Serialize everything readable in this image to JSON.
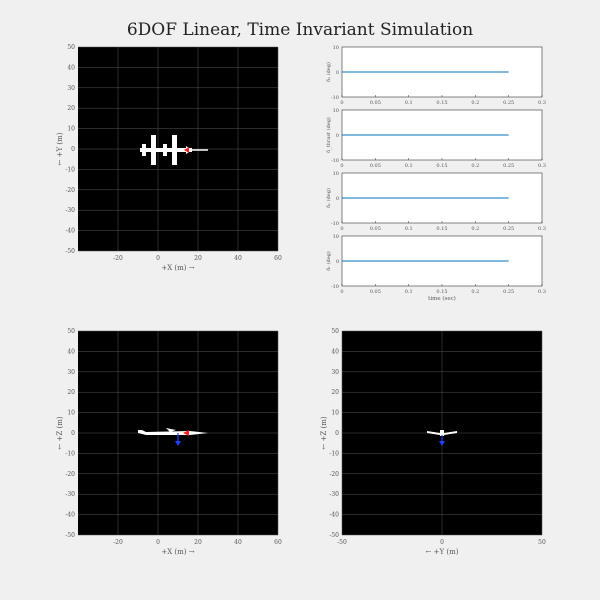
{
  "window": {
    "title": "6DOF Linear, Time Invariant Simulation"
  },
  "colors": {
    "background": "#f0f0f0",
    "plot_bg": "#000000",
    "grid": "#555555",
    "line": "#0072bd",
    "aircraft": "#ffffff",
    "force_red": "#ff2020",
    "force_blue": "#2040ff"
  },
  "top_view": {
    "xlabel": "+X (m) →",
    "ylabel": "← +Y (m)",
    "xticks": [
      "-20",
      "0",
      "20",
      "40",
      "60"
    ],
    "yticks": [
      "50",
      "40",
      "30",
      "20",
      "10",
      "0",
      "-10",
      "-20",
      "-30",
      "-40",
      "-50"
    ]
  },
  "side_view": {
    "xlabel": "+X (m) →",
    "ylabel": "← +Z (m)",
    "xticks": [
      "-20",
      "0",
      "20",
      "40",
      "60"
    ],
    "yticks": [
      "50",
      "40",
      "30",
      "20",
      "10",
      "0",
      "-10",
      "-20",
      "-30",
      "-40",
      "-50"
    ]
  },
  "front_view": {
    "xlabel": "← +Y (m)",
    "ylabel": "← +Z (m)",
    "xticks": [
      "-50",
      "0",
      "50"
    ],
    "yticks": [
      "50",
      "40",
      "30",
      "20",
      "10",
      "0",
      "-10",
      "-20",
      "-30",
      "-40",
      "-50"
    ]
  },
  "chart_data": [
    {
      "type": "line",
      "ylabel": "δₐ (deg)",
      "x": [
        0,
        0.25
      ],
      "xlim": [
        0,
        0.3
      ],
      "ylim": [
        -10,
        10
      ],
      "xticks": [
        "0",
        "0.05",
        "0.1",
        "0.15",
        "0.2",
        "0.25",
        "0.3"
      ],
      "yticks": [
        "10",
        "0",
        "-10"
      ],
      "series": [
        {
          "values": [
            0,
            0
          ]
        }
      ]
    },
    {
      "type": "line",
      "ylabel": "δ_thrust (deg)",
      "x": [
        0,
        0.25
      ],
      "xlim": [
        0,
        0.3
      ],
      "ylim": [
        -10,
        10
      ],
      "xticks": [
        "0",
        "0.05",
        "0.1",
        "0.15",
        "0.2",
        "0.25",
        "0.3"
      ],
      "yticks": [
        "10",
        "0",
        "-10"
      ],
      "series": [
        {
          "values": [
            0,
            0
          ]
        }
      ]
    },
    {
      "type": "line",
      "ylabel": "δₑ (deg)",
      "x": [
        0,
        0.25
      ],
      "xlim": [
        0,
        0.3
      ],
      "ylim": [
        -10,
        10
      ],
      "xticks": [
        "0",
        "0.05",
        "0.1",
        "0.15",
        "0.2",
        "0.25",
        "0.3"
      ],
      "yticks": [
        "10",
        "0",
        "-10"
      ],
      "series": [
        {
          "values": [
            0,
            0
          ]
        }
      ]
    },
    {
      "type": "line",
      "ylabel": "δᵣ (deg)",
      "xlabel": "time (sec)",
      "x": [
        0,
        0.25
      ],
      "xlim": [
        0,
        0.3
      ],
      "ylim": [
        -10,
        10
      ],
      "xticks": [
        "0",
        "0.05",
        "0.1",
        "0.15",
        "0.2",
        "0.25",
        "0.3"
      ],
      "yticks": [
        "10",
        "0",
        "-10"
      ],
      "series": [
        {
          "values": [
            0,
            0
          ]
        }
      ]
    }
  ]
}
